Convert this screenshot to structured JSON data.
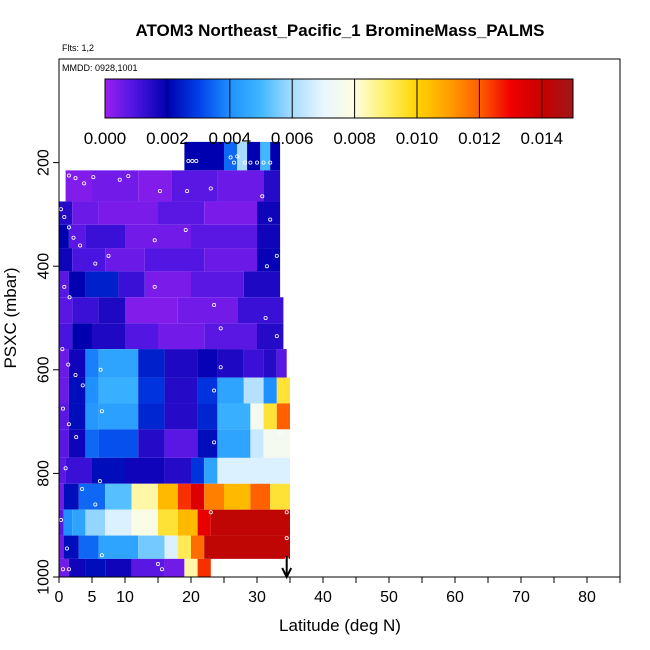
{
  "chart_data": {
    "type": "heatmap",
    "title": "ATOM3 Northeast_Pacific_1 BromineMass_PALMS",
    "flights_label": "Flts: 1,2",
    "dates_label": "MMDD: 0928,1001",
    "xlabel": "Latitude (deg N)",
    "ylabel": "PSXC (mbar)",
    "xlim": [
      0,
      85
    ],
    "ylim": [
      1000,
      0
    ],
    "x_ticks": [
      0,
      5,
      10,
      20,
      30,
      40,
      50,
      60,
      70,
      80
    ],
    "x_minor_ticks": [
      15,
      25,
      35,
      45,
      55,
      65,
      75,
      85
    ],
    "y_ticks": [
      200,
      400,
      600,
      800,
      1000
    ],
    "colorbar": {
      "range": [
        0.0,
        0.015
      ],
      "ticks": [
        "0.000",
        "0.002",
        "0.004",
        "0.006",
        "0.008",
        "0.010",
        "0.012",
        "0.014"
      ],
      "stops": [
        {
          "v": 0.0,
          "c": "#9a20f0"
        },
        {
          "v": 0.001,
          "c": "#4a14e0"
        },
        {
          "v": 0.002,
          "c": "#0000b0"
        },
        {
          "v": 0.003,
          "c": "#0040e8"
        },
        {
          "v": 0.004,
          "c": "#1e90ff"
        },
        {
          "v": 0.005,
          "c": "#40b8ff"
        },
        {
          "v": 0.006,
          "c": "#a8dcff"
        },
        {
          "v": 0.007,
          "c": "#e8f6ff"
        },
        {
          "v": 0.008,
          "c": "#fffde0"
        },
        {
          "v": 0.009,
          "c": "#fff06a"
        },
        {
          "v": 0.01,
          "c": "#ffd400"
        },
        {
          "v": 0.011,
          "c": "#ffa000"
        },
        {
          "v": 0.012,
          "c": "#ff6000"
        },
        {
          "v": 0.013,
          "c": "#f00000"
        },
        {
          "v": 0.014,
          "c": "#c80000"
        },
        {
          "v": 0.015,
          "c": "#a01818"
        }
      ]
    },
    "bands": [
      {
        "p": [
          160,
          215
        ],
        "cells": [
          [
            19,
            25,
            0.002
          ],
          [
            25,
            27,
            0.0035
          ],
          [
            27,
            28.5,
            0.006
          ],
          [
            28.5,
            30.5,
            0.002
          ],
          [
            30.5,
            32,
            0.005
          ],
          [
            32,
            33.5,
            0.002
          ]
        ]
      },
      {
        "p": [
          215,
          275
        ],
        "cells": [
          [
            1,
            5,
            0.0003
          ],
          [
            5,
            12,
            0.0005
          ],
          [
            12,
            17,
            0.0003
          ],
          [
            17,
            24,
            0.0008
          ],
          [
            24,
            31,
            0.0006
          ],
          [
            31,
            33.5,
            0.0015
          ]
        ]
      },
      {
        "p": [
          275,
          320
        ],
        "cells": [
          [
            0,
            2,
            0.0015
          ],
          [
            2,
            6,
            0.0006
          ],
          [
            6,
            15,
            0.0004
          ],
          [
            15,
            22,
            0.0008
          ],
          [
            22,
            30,
            0.0004
          ],
          [
            30,
            33.5,
            0.0018
          ]
        ]
      },
      {
        "p": [
          320,
          365
        ],
        "cells": [
          [
            0,
            1.5,
            0.002
          ],
          [
            1.5,
            4,
            0.0008
          ],
          [
            4,
            10,
            0.0012
          ],
          [
            10,
            20,
            0.0005
          ],
          [
            20,
            30,
            0.0008
          ],
          [
            30,
            33.5,
            0.0018
          ]
        ]
      },
      {
        "p": [
          365,
          410
        ],
        "cells": [
          [
            0,
            2,
            0.0018
          ],
          [
            2,
            7,
            0.001
          ],
          [
            7,
            13,
            0.0006
          ],
          [
            13,
            22,
            0.0009
          ],
          [
            22,
            30,
            0.0006
          ],
          [
            30,
            33.5,
            0.0019
          ]
        ]
      },
      {
        "p": [
          410,
          460
        ],
        "cells": [
          [
            0,
            1.5,
            0.0008
          ],
          [
            1.5,
            4,
            0.002
          ],
          [
            4,
            9,
            0.0025
          ],
          [
            9,
            13,
            0.0012
          ],
          [
            13,
            20,
            0.0004
          ],
          [
            20,
            28,
            0.0008
          ],
          [
            28,
            33.5,
            0.0016
          ]
        ]
      },
      {
        "p": [
          460,
          510
        ],
        "cells": [
          [
            0,
            2,
            0.0008
          ],
          [
            2,
            6,
            0.0012
          ],
          [
            6,
            10,
            0.0016
          ],
          [
            10,
            18,
            0.0003
          ],
          [
            18,
            27,
            0.0005
          ],
          [
            27,
            34,
            0.0012
          ]
        ]
      },
      {
        "p": [
          510,
          560
        ],
        "cells": [
          [
            0,
            2,
            0.001
          ],
          [
            2,
            5,
            0.002
          ],
          [
            5,
            10,
            0.0016
          ],
          [
            10,
            15,
            0.0009
          ],
          [
            15,
            22,
            0.0005
          ],
          [
            22,
            30,
            0.0008
          ],
          [
            30,
            34,
            0.0015
          ]
        ]
      },
      {
        "p": [
          560,
          615
        ],
        "cells": [
          [
            0,
            1.5,
            0.0006
          ],
          [
            1.5,
            4,
            0.0018
          ],
          [
            4,
            6,
            0.0038
          ],
          [
            6,
            12,
            0.0045
          ],
          [
            12,
            16,
            0.0025
          ],
          [
            16,
            21,
            0.0016
          ],
          [
            21,
            24,
            0.0019
          ],
          [
            24,
            28,
            0.0016
          ],
          [
            28,
            31,
            0.0012
          ],
          [
            31,
            33,
            0.0015
          ],
          [
            33,
            34.5,
            0.0008
          ]
        ]
      },
      {
        "p": [
          615,
          665
        ],
        "cells": [
          [
            0,
            1.5,
            0.0006
          ],
          [
            1.5,
            4,
            0.0022
          ],
          [
            4,
            6,
            0.004
          ],
          [
            6,
            12,
            0.0048
          ],
          [
            12,
            16,
            0.0028
          ],
          [
            16,
            21,
            0.0015
          ],
          [
            21,
            24,
            0.0028
          ],
          [
            24,
            28,
            0.0045
          ],
          [
            28,
            31,
            0.0062
          ],
          [
            31,
            33,
            0.004
          ],
          [
            33,
            35,
            0.0095
          ]
        ]
      },
      {
        "p": [
          665,
          715
        ],
        "cells": [
          [
            0,
            1.5,
            0.0008
          ],
          [
            1.5,
            4,
            0.0022
          ],
          [
            4,
            6,
            0.0042
          ],
          [
            6,
            12,
            0.0044
          ],
          [
            12,
            16,
            0.0026
          ],
          [
            16,
            21,
            0.0015
          ],
          [
            21,
            24,
            0.0026
          ],
          [
            24,
            29,
            0.0048
          ],
          [
            29,
            31,
            0.0075
          ],
          [
            31,
            33,
            0.0095
          ],
          [
            33,
            35,
            0.012
          ]
        ]
      },
      {
        "p": [
          715,
          770
        ],
        "cells": [
          [
            0,
            1.5,
            0.0008
          ],
          [
            1.5,
            4,
            0.0018
          ],
          [
            4,
            6,
            0.0035
          ],
          [
            6,
            12,
            0.0032
          ],
          [
            12,
            16,
            0.0015
          ],
          [
            16,
            21,
            0.0008
          ],
          [
            21,
            24,
            0.0022
          ],
          [
            24,
            29,
            0.0045
          ],
          [
            29,
            31,
            0.0065
          ],
          [
            31,
            35,
            0.0075
          ]
        ]
      },
      {
        "p": [
          770,
          820
        ],
        "cells": [
          [
            0,
            1,
            0.0008
          ],
          [
            1,
            5,
            0.0012
          ],
          [
            5,
            10,
            0.0022
          ],
          [
            10,
            16,
            0.0018
          ],
          [
            16,
            20,
            0.0015
          ],
          [
            20,
            22,
            0.0028
          ],
          [
            22,
            24,
            0.0045
          ],
          [
            24,
            35,
            0.0068
          ]
        ]
      },
      {
        "p": [
          820,
          870
        ],
        "cells": [
          [
            0,
            0.7,
            0.0005
          ],
          [
            0.7,
            3,
            0.0022
          ],
          [
            3,
            7,
            0.0035
          ],
          [
            7,
            11,
            0.0052
          ],
          [
            11,
            15,
            0.0085
          ],
          [
            15,
            18,
            0.0105
          ],
          [
            18,
            20,
            0.0125
          ],
          [
            20,
            22,
            0.0135
          ],
          [
            22,
            25,
            0.0115
          ],
          [
            25,
            29,
            0.0105
          ],
          [
            29,
            32,
            0.012
          ],
          [
            32,
            35,
            0.0095
          ]
        ]
      },
      {
        "p": [
          870,
          920
        ],
        "cells": [
          [
            0,
            0.7,
            0.0008
          ],
          [
            0.7,
            2,
            0.004
          ],
          [
            2,
            4,
            0.0045
          ],
          [
            4,
            7,
            0.0058
          ],
          [
            7,
            11,
            0.0068
          ],
          [
            11,
            15,
            0.0078
          ],
          [
            15,
            18,
            0.0095
          ],
          [
            18,
            21,
            0.0105
          ],
          [
            21,
            23,
            0.0132
          ],
          [
            23,
            35,
            0.0142
          ]
        ]
      },
      {
        "p": [
          920,
          965
        ],
        "cells": [
          [
            0,
            0.7,
            0.0005
          ],
          [
            0.7,
            3,
            0.0022
          ],
          [
            3,
            6,
            0.0035
          ],
          [
            6,
            12,
            0.0045
          ],
          [
            12,
            16,
            0.0055
          ],
          [
            16,
            18,
            0.0068
          ],
          [
            18,
            20,
            0.0092
          ],
          [
            20,
            22,
            0.0118
          ],
          [
            22,
            35,
            0.0142
          ]
        ]
      },
      {
        "p": [
          965,
          1000
        ],
        "cells": [
          [
            0,
            1.5,
            0.0005
          ],
          [
            1.5,
            4,
            0.0018
          ],
          [
            4,
            7,
            0.0022
          ],
          [
            7,
            11,
            0.0018
          ],
          [
            11,
            16,
            0.0008
          ],
          [
            16,
            19,
            0.0005
          ],
          [
            19,
            21,
            0.0085
          ],
          [
            21,
            23,
            0.0125
          ]
        ]
      }
    ],
    "sample_points": [
      {
        "x": 1.5,
        "y": 225
      },
      {
        "x": 2.5,
        "y": 230
      },
      {
        "x": 3.8,
        "y": 240
      },
      {
        "x": 5.2,
        "y": 228
      },
      {
        "x": 9.2,
        "y": 233
      },
      {
        "x": 10.5,
        "y": 226
      },
      {
        "x": 15.3,
        "y": 255
      },
      {
        "x": 19.6,
        "y": 197
      },
      {
        "x": 20.2,
        "y": 197
      },
      {
        "x": 20.8,
        "y": 197
      },
      {
        "x": 26.0,
        "y": 190
      },
      {
        "x": 27.0,
        "y": 188
      },
      {
        "x": 29.0,
        "y": 200
      },
      {
        "x": 30.0,
        "y": 200
      },
      {
        "x": 31.0,
        "y": 200
      },
      {
        "x": 32.0,
        "y": 200
      },
      {
        "x": 28.2,
        "y": 200
      },
      {
        "x": 26.5,
        "y": 200
      },
      {
        "x": 23.0,
        "y": 250
      },
      {
        "x": 19.4,
        "y": 255
      },
      {
        "x": 30.8,
        "y": 265
      },
      {
        "x": 0.3,
        "y": 290
      },
      {
        "x": 0.8,
        "y": 305
      },
      {
        "x": 1.5,
        "y": 325
      },
      {
        "x": 2.2,
        "y": 345
      },
      {
        "x": 3.2,
        "y": 360
      },
      {
        "x": 5.5,
        "y": 395
      },
      {
        "x": 7.5,
        "y": 380
      },
      {
        "x": 14.5,
        "y": 350
      },
      {
        "x": 19.2,
        "y": 330
      },
      {
        "x": 31.5,
        "y": 400
      },
      {
        "x": 32.0,
        "y": 310
      },
      {
        "x": 33.0,
        "y": 380
      },
      {
        "x": 0.8,
        "y": 440
      },
      {
        "x": 1.6,
        "y": 460
      },
      {
        "x": 14.5,
        "y": 440
      },
      {
        "x": 23.5,
        "y": 475
      },
      {
        "x": 24.5,
        "y": 520
      },
      {
        "x": 31.3,
        "y": 500
      },
      {
        "x": 33.0,
        "y": 535
      },
      {
        "x": 0.5,
        "y": 560
      },
      {
        "x": 1.4,
        "y": 590
      },
      {
        "x": 2.5,
        "y": 610
      },
      {
        "x": 3.6,
        "y": 630
      },
      {
        "x": 6.3,
        "y": 600
      },
      {
        "x": 24.5,
        "y": 595
      },
      {
        "x": 23.5,
        "y": 640
      },
      {
        "x": 0.6,
        "y": 675
      },
      {
        "x": 1.5,
        "y": 705
      },
      {
        "x": 2.6,
        "y": 730
      },
      {
        "x": 6.5,
        "y": 680
      },
      {
        "x": 23.5,
        "y": 740
      },
      {
        "x": 33.5,
        "y": 720
      },
      {
        "x": 1.0,
        "y": 790
      },
      {
        "x": 3.5,
        "y": 830
      },
      {
        "x": 5.5,
        "y": 860
      },
      {
        "x": 6.2,
        "y": 815
      },
      {
        "x": 0.3,
        "y": 890
      },
      {
        "x": 1.2,
        "y": 945
      },
      {
        "x": 1.5,
        "y": 985
      },
      {
        "x": 0.6,
        "y": 985
      },
      {
        "x": 6.5,
        "y": 958
      },
      {
        "x": 15.0,
        "y": 975
      },
      {
        "x": 15.6,
        "y": 985
      },
      {
        "x": 23.0,
        "y": 875
      },
      {
        "x": 34.5,
        "y": 875
      },
      {
        "x": 34.5,
        "y": 925
      },
      {
        "x": 34.5,
        "y": 965
      }
    ],
    "arrow_x": 34.5
  }
}
